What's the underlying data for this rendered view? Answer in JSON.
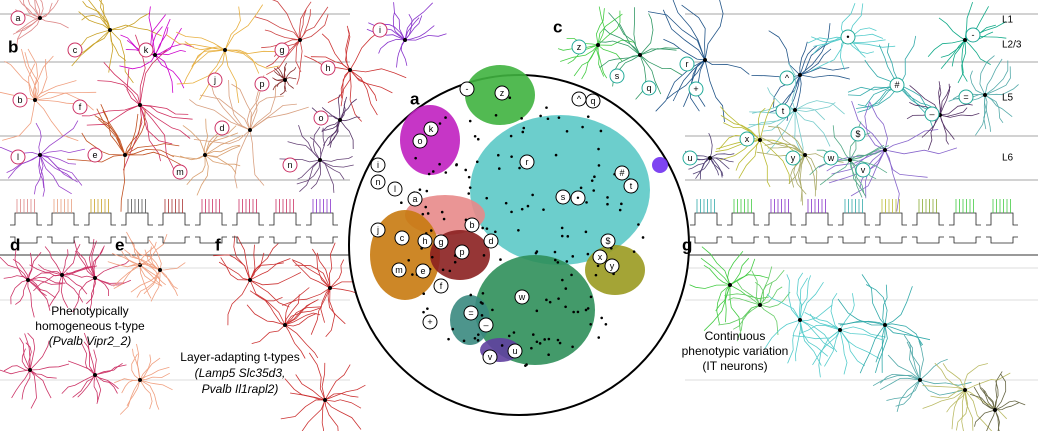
{
  "panels": [
    "a",
    "b",
    "c",
    "d",
    "e",
    "f",
    "g"
  ],
  "layers": [
    "L1",
    "L2/3",
    "L5",
    "L6"
  ],
  "captions": {
    "homogeneous": [
      "Phenotypically",
      "homogeneous t-type",
      "(Pvalb Vipr2_2)"
    ],
    "layer_adapting": [
      "Layer-adapting t-types",
      "(Lamp5 Slc35d3,",
      "Pvalb Il1rapl2)"
    ],
    "continuous": [
      "Continuous",
      "phenotypic variation",
      "(IT neurons)"
    ]
  },
  "left_types": [
    "a",
    "b",
    "c",
    "d",
    "e",
    "f",
    "g",
    "h",
    "i",
    "j",
    "k",
    "l",
    "m",
    "n",
    "o",
    "p"
  ],
  "right_types": [
    "z",
    "s",
    "q",
    "r",
    "+",
    "^",
    "•",
    "-",
    "#",
    "=",
    "t",
    "–",
    "x",
    "$",
    "y",
    "w",
    "v",
    "u"
  ],
  "map_types": [
    "-",
    "z",
    "^",
    "q",
    "k",
    "o",
    "r",
    "#",
    "t",
    "s",
    "•",
    "i",
    "n",
    "l",
    "a",
    "b",
    "j",
    "c",
    "h",
    "g",
    "p",
    "m",
    "e",
    "f",
    "d",
    "$",
    "x",
    "y",
    "w",
    "+",
    "=",
    "–",
    "v",
    "u"
  ]
}
